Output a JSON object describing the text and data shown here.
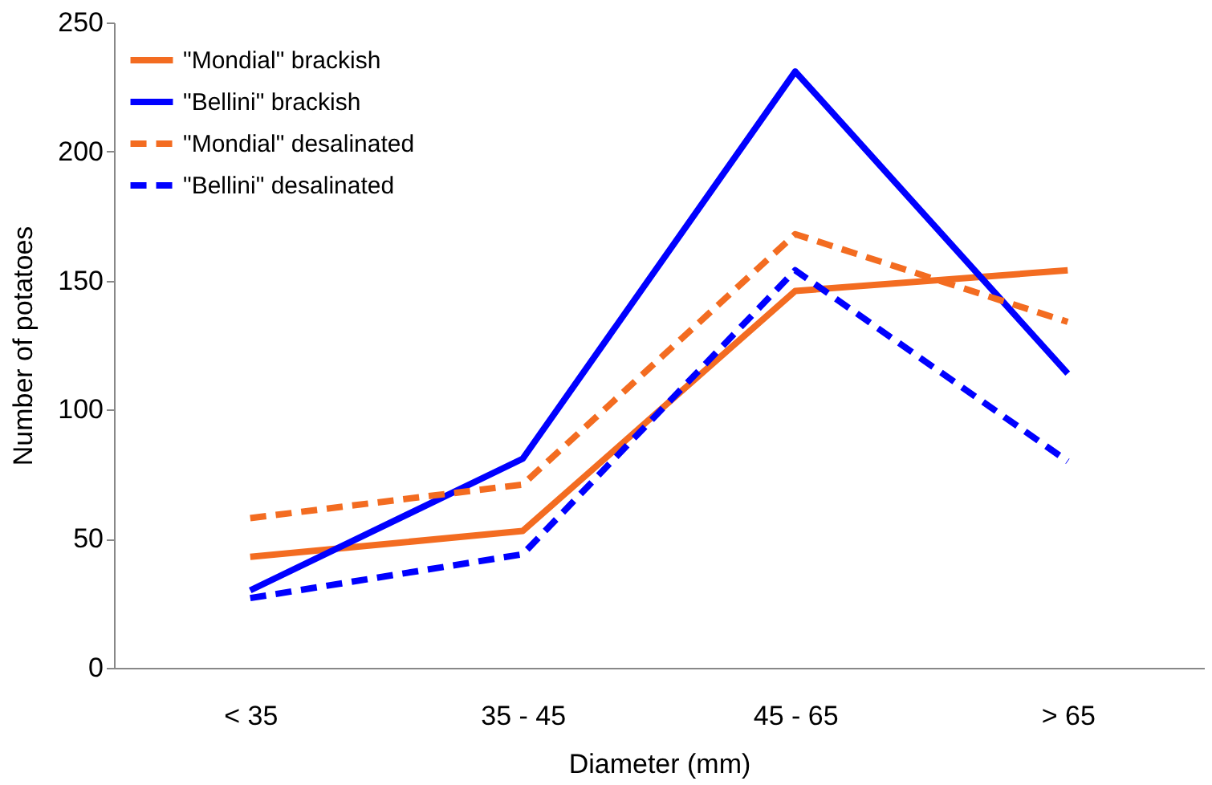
{
  "chart_data": {
    "type": "line",
    "xlabel": "Diameter (mm)",
    "ylabel": "Number of potatoes",
    "categories": [
      "< 35",
      "35 - 45",
      "45 - 65",
      "> 65"
    ],
    "ylim": [
      0,
      250
    ],
    "yticks": [
      0,
      50,
      100,
      150,
      200,
      250
    ],
    "grid": false,
    "legend": "top left",
    "marker": "none",
    "series": [
      {
        "name": "\"Mondial\" brackish",
        "color": "#f36c21",
        "line_style": "solid",
        "values": [
          43,
          53,
          146,
          154
        ]
      },
      {
        "name": "\"Bellini\" brackish",
        "color": "#0000ff",
        "line_style": "solid",
        "values": [
          30,
          81,
          231,
          114
        ]
      },
      {
        "name": "\"Mondial\" desalinated",
        "color": "#f36c21",
        "line_style": "dashed",
        "values": [
          58,
          71,
          168,
          134
        ]
      },
      {
        "name": "\"Bellini\" desalinated",
        "color": "#0000ff",
        "line_style": "dashed",
        "values": [
          27,
          44,
          154,
          80
        ]
      }
    ]
  }
}
